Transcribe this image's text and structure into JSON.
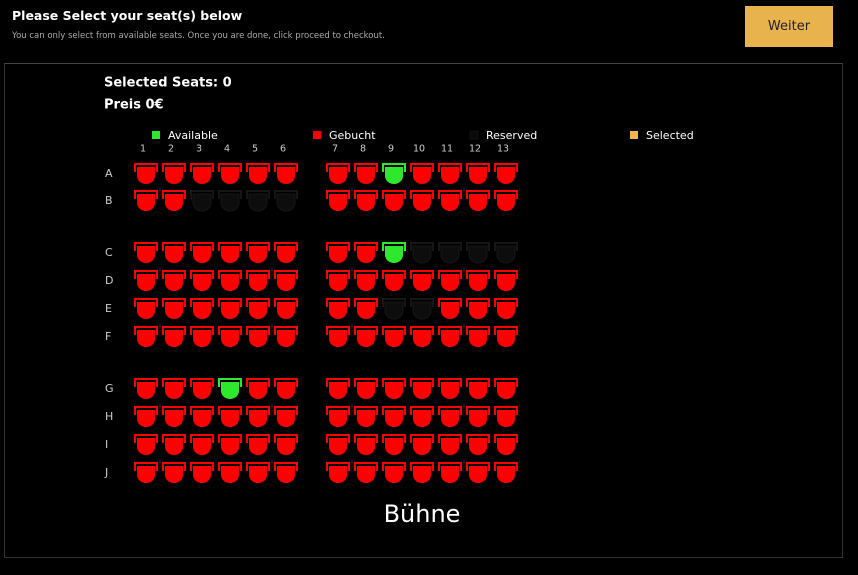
{
  "header": {
    "title": "Please Select your seat(s) below",
    "subtitle": "You can only select from available seats. Once you are done, click proceed to checkout.",
    "button": "Weiter"
  },
  "summary": {
    "selected": "Selected Seats: 0",
    "price": "Preis 0€"
  },
  "legend": [
    {
      "label": "Available",
      "color": "#2ee82e"
    },
    {
      "label": "Gebucht",
      "color": "#ff0000"
    },
    {
      "label": "Reserved",
      "color": "#0a0a0a"
    },
    {
      "label": "Selected",
      "color": "#f0b64c"
    }
  ],
  "columns": [
    "1",
    "2",
    "3",
    "4",
    "5",
    "6",
    "7",
    "8",
    "9",
    "10",
    "11",
    "12",
    "13"
  ],
  "rows": [
    {
      "label": "A",
      "seats": [
        1,
        1,
        1,
        1,
        1,
        1,
        1,
        1,
        0,
        1,
        1,
        1,
        1
      ]
    },
    {
      "label": "B",
      "seats": [
        1,
        1,
        2,
        2,
        2,
        2,
        1,
        1,
        1,
        1,
        1,
        1,
        1
      ]
    },
    {
      "label": "C",
      "seats": [
        1,
        1,
        1,
        1,
        1,
        1,
        1,
        1,
        0,
        2,
        2,
        2,
        2
      ]
    },
    {
      "label": "D",
      "seats": [
        1,
        1,
        1,
        1,
        1,
        1,
        1,
        1,
        1,
        1,
        1,
        1,
        1
      ]
    },
    {
      "label": "E",
      "seats": [
        1,
        1,
        1,
        1,
        1,
        1,
        1,
        1,
        2,
        2,
        1,
        1,
        1
      ]
    },
    {
      "label": "F",
      "seats": [
        1,
        1,
        1,
        1,
        1,
        1,
        1,
        1,
        1,
        1,
        1,
        1,
        1
      ]
    },
    {
      "label": "G",
      "seats": [
        1,
        1,
        1,
        0,
        1,
        1,
        1,
        1,
        1,
        1,
        1,
        1,
        1
      ]
    },
    {
      "label": "H",
      "seats": [
        1,
        1,
        1,
        1,
        1,
        1,
        1,
        1,
        1,
        1,
        1,
        1,
        1
      ]
    },
    {
      "label": "I",
      "seats": [
        1,
        1,
        1,
        1,
        1,
        1,
        1,
        1,
        1,
        1,
        1,
        1,
        1
      ]
    },
    {
      "label": "J",
      "seats": [
        1,
        1,
        1,
        1,
        1,
        1,
        1,
        1,
        1,
        1,
        1,
        1,
        1
      ]
    }
  ],
  "stage": "Bühne"
}
